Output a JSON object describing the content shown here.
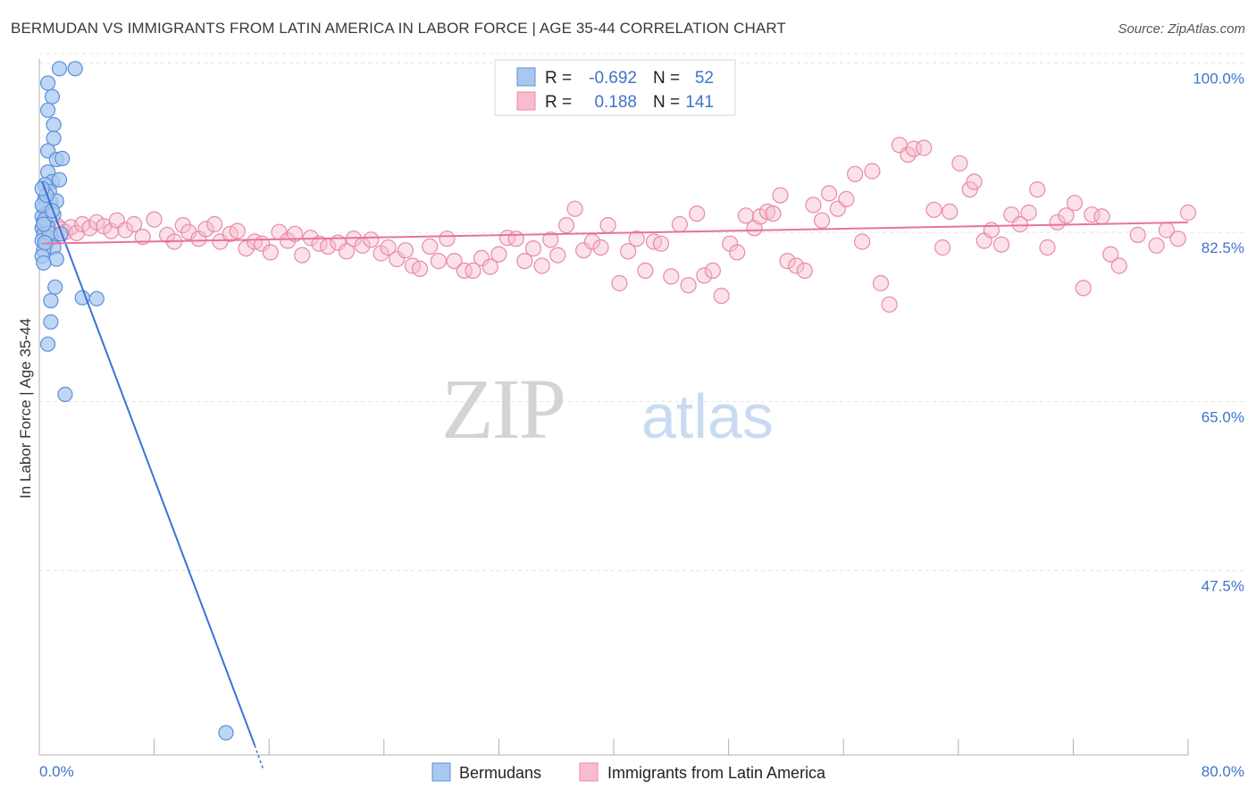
{
  "title": "BERMUDAN VS IMMIGRANTS FROM LATIN AMERICA IN LABOR FORCE | AGE 35-44 CORRELATION CHART",
  "source": "Source: ZipAtlas.com",
  "watermark": {
    "zip": "ZIP",
    "atlas": "atlas"
  },
  "legend": {
    "rows": [
      {
        "r_label": "R =",
        "r_value": "-0.692",
        "n_label": "N =",
        "n_value": "52",
        "color": "#a9c8f0",
        "stroke": "#5b8fd6"
      },
      {
        "r_label": "R =",
        "r_value": "0.188",
        "n_label": "N =",
        "n_value": "141",
        "color": "#f7bccd",
        "stroke": "#e88aa6"
      }
    ]
  },
  "bottom_legend": [
    {
      "label": "Bermudans",
      "color": "#a9c8f0",
      "stroke": "#5b8fd6"
    },
    {
      "label": "Immigrants from Latin America",
      "color": "#f7bccd",
      "stroke": "#e88aa6"
    }
  ],
  "chart_data": {
    "type": "scatter",
    "ylabel": "In Labor Force | Age 35-44",
    "xlim": [
      0,
      80
    ],
    "ylim": [
      30,
      102
    ],
    "x_tick_labels": [
      "0.0%",
      "80.0%"
    ],
    "y_ticks": [
      {
        "value": 100.0,
        "label": "100.0%"
      },
      {
        "value": 82.5,
        "label": "82.5%"
      },
      {
        "value": 65.0,
        "label": "65.0%"
      },
      {
        "value": 47.5,
        "label": "47.5%"
      }
    ],
    "series": [
      {
        "name": "Bermudans",
        "color": "#a9c8f0",
        "stroke": "#5b8fd6",
        "line_color": "#3a72d4",
        "trend": {
          "x0": 0.2,
          "y0": 89.3,
          "x1": 15.0,
          "y1": 31.0
        },
        "trend_dashed": {
          "x0": 15.0,
          "y0": 31.0,
          "x1": 15.6,
          "y1": 28.5
        },
        "points": [
          [
            1.4,
            101.0
          ],
          [
            2.5,
            101.0
          ],
          [
            0.6,
            99.5
          ],
          [
            0.9,
            98.1
          ],
          [
            0.6,
            96.7
          ],
          [
            1.0,
            95.2
          ],
          [
            1.0,
            93.8
          ],
          [
            0.6,
            92.5
          ],
          [
            1.2,
            91.6
          ],
          [
            1.6,
            91.7
          ],
          [
            0.6,
            90.3
          ],
          [
            0.9,
            89.3
          ],
          [
            1.4,
            89.5
          ],
          [
            0.4,
            89.0
          ],
          [
            0.7,
            88.3
          ],
          [
            0.4,
            87.6
          ],
          [
            0.8,
            87.2
          ],
          [
            1.2,
            87.3
          ],
          [
            0.3,
            86.6
          ],
          [
            0.5,
            86.0
          ],
          [
            0.2,
            85.7
          ],
          [
            0.3,
            85.1
          ],
          [
            0.2,
            84.5
          ],
          [
            0.4,
            84.2
          ],
          [
            0.6,
            84.6
          ],
          [
            0.3,
            83.8
          ],
          [
            0.8,
            83.5
          ],
          [
            0.2,
            83.2
          ],
          [
            0.5,
            82.8
          ],
          [
            1.0,
            82.5
          ],
          [
            0.3,
            82.2
          ],
          [
            0.7,
            84.0
          ],
          [
            0.4,
            85.4
          ],
          [
            0.2,
            86.9
          ],
          [
            1.0,
            85.9
          ],
          [
            0.2,
            81.6
          ],
          [
            1.2,
            81.3
          ],
          [
            0.3,
            80.9
          ],
          [
            1.1,
            78.4
          ],
          [
            0.8,
            77.0
          ],
          [
            3.0,
            77.3
          ],
          [
            4.0,
            77.2
          ],
          [
            0.8,
            74.8
          ],
          [
            0.6,
            72.5
          ],
          [
            1.8,
            67.3
          ],
          [
            13.0,
            32.3
          ],
          [
            0.3,
            84.9
          ],
          [
            0.5,
            87.9
          ],
          [
            0.2,
            88.6
          ],
          [
            1.5,
            83.9
          ],
          [
            0.9,
            86.3
          ],
          [
            0.4,
            83.0
          ]
        ]
      },
      {
        "name": "Immigrants from Latin America",
        "color": "#f7bccd",
        "stroke": "#e88aa6",
        "line_color": "#e8739a",
        "trend": {
          "x0": 0.2,
          "y0": 82.9,
          "x1": 80.0,
          "y1": 85.1
        },
        "points": [
          [
            0.6,
            84.2
          ],
          [
            1.0,
            83.6
          ],
          [
            1.2,
            84.8
          ],
          [
            1.5,
            84.4
          ],
          [
            1.8,
            84.1
          ],
          [
            2.2,
            84.6
          ],
          [
            2.6,
            84.0
          ],
          [
            3.0,
            84.9
          ],
          [
            3.5,
            84.5
          ],
          [
            4.0,
            85.1
          ],
          [
            4.5,
            84.7
          ],
          [
            5.0,
            84.2
          ],
          [
            5.4,
            85.3
          ],
          [
            6.0,
            84.3
          ],
          [
            6.6,
            84.9
          ],
          [
            7.2,
            83.6
          ],
          [
            8.0,
            85.4
          ],
          [
            8.9,
            83.8
          ],
          [
            9.4,
            83.1
          ],
          [
            10.0,
            84.8
          ],
          [
            10.4,
            84.1
          ],
          [
            11.1,
            83.4
          ],
          [
            11.6,
            84.4
          ],
          [
            12.2,
            84.9
          ],
          [
            12.6,
            83.1
          ],
          [
            13.3,
            83.9
          ],
          [
            13.8,
            84.2
          ],
          [
            14.4,
            82.4
          ],
          [
            15.0,
            83.1
          ],
          [
            15.5,
            82.9
          ],
          [
            16.1,
            82.0
          ],
          [
            16.7,
            84.1
          ],
          [
            17.3,
            83.2
          ],
          [
            17.8,
            83.9
          ],
          [
            18.3,
            81.7
          ],
          [
            18.9,
            83.5
          ],
          [
            19.5,
            82.9
          ],
          [
            20.1,
            82.6
          ],
          [
            20.8,
            83.0
          ],
          [
            21.4,
            82.1
          ],
          [
            21.9,
            83.4
          ],
          [
            22.5,
            82.7
          ],
          [
            23.1,
            83.3
          ],
          [
            23.8,
            81.9
          ],
          [
            24.3,
            82.5
          ],
          [
            24.9,
            81.3
          ],
          [
            25.5,
            82.2
          ],
          [
            26.0,
            80.6
          ],
          [
            26.5,
            80.3
          ],
          [
            27.2,
            82.6
          ],
          [
            27.8,
            81.1
          ],
          [
            28.4,
            83.4
          ],
          [
            28.9,
            81.1
          ],
          [
            29.6,
            80.1
          ],
          [
            30.2,
            80.1
          ],
          [
            30.8,
            81.4
          ],
          [
            31.4,
            80.5
          ],
          [
            32.0,
            81.8
          ],
          [
            32.6,
            83.5
          ],
          [
            33.2,
            83.4
          ],
          [
            33.8,
            81.1
          ],
          [
            34.4,
            82.4
          ],
          [
            35.0,
            80.6
          ],
          [
            35.6,
            83.3
          ],
          [
            36.1,
            81.7
          ],
          [
            36.7,
            84.8
          ],
          [
            37.3,
            86.5
          ],
          [
            37.9,
            82.2
          ],
          [
            38.5,
            83.1
          ],
          [
            39.1,
            82.5
          ],
          [
            39.6,
            84.8
          ],
          [
            40.4,
            78.8
          ],
          [
            41.0,
            82.1
          ],
          [
            41.6,
            83.4
          ],
          [
            42.2,
            80.1
          ],
          [
            42.8,
            83.1
          ],
          [
            43.3,
            82.9
          ],
          [
            44.0,
            79.5
          ],
          [
            44.6,
            84.9
          ],
          [
            45.2,
            78.6
          ],
          [
            45.8,
            86.0
          ],
          [
            46.3,
            79.6
          ],
          [
            46.9,
            80.1
          ],
          [
            47.5,
            77.5
          ],
          [
            48.1,
            82.9
          ],
          [
            48.6,
            82.0
          ],
          [
            49.2,
            85.8
          ],
          [
            49.8,
            84.5
          ],
          [
            50.2,
            85.7
          ],
          [
            50.7,
            86.2
          ],
          [
            51.1,
            86.0
          ],
          [
            51.6,
            87.9
          ],
          [
            52.1,
            81.1
          ],
          [
            52.7,
            80.6
          ],
          [
            53.3,
            80.1
          ],
          [
            53.9,
            86.9
          ],
          [
            54.5,
            85.3
          ],
          [
            55.0,
            88.1
          ],
          [
            55.6,
            86.5
          ],
          [
            56.2,
            87.5
          ],
          [
            56.8,
            90.1
          ],
          [
            57.3,
            83.1
          ],
          [
            58.0,
            90.4
          ],
          [
            58.6,
            78.8
          ],
          [
            59.2,
            76.6
          ],
          [
            59.9,
            93.1
          ],
          [
            60.5,
            92.1
          ],
          [
            60.9,
            92.7
          ],
          [
            61.6,
            92.8
          ],
          [
            62.3,
            86.4
          ],
          [
            62.9,
            82.5
          ],
          [
            63.4,
            86.2
          ],
          [
            64.1,
            91.2
          ],
          [
            64.8,
            88.5
          ],
          [
            65.1,
            89.3
          ],
          [
            65.8,
            83.2
          ],
          [
            66.3,
            84.3
          ],
          [
            67.0,
            82.8
          ],
          [
            67.7,
            85.9
          ],
          [
            68.3,
            84.9
          ],
          [
            68.9,
            86.1
          ],
          [
            69.5,
            88.5
          ],
          [
            70.2,
            82.5
          ],
          [
            70.9,
            85.1
          ],
          [
            71.5,
            85.8
          ],
          [
            72.1,
            87.1
          ],
          [
            72.7,
            78.3
          ],
          [
            73.3,
            85.9
          ],
          [
            74.0,
            85.7
          ],
          [
            74.6,
            81.8
          ],
          [
            75.2,
            80.6
          ],
          [
            76.5,
            83.8
          ],
          [
            77.8,
            82.7
          ],
          [
            78.5,
            84.3
          ],
          [
            79.3,
            83.4
          ],
          [
            80.0,
            86.1
          ]
        ]
      }
    ]
  }
}
